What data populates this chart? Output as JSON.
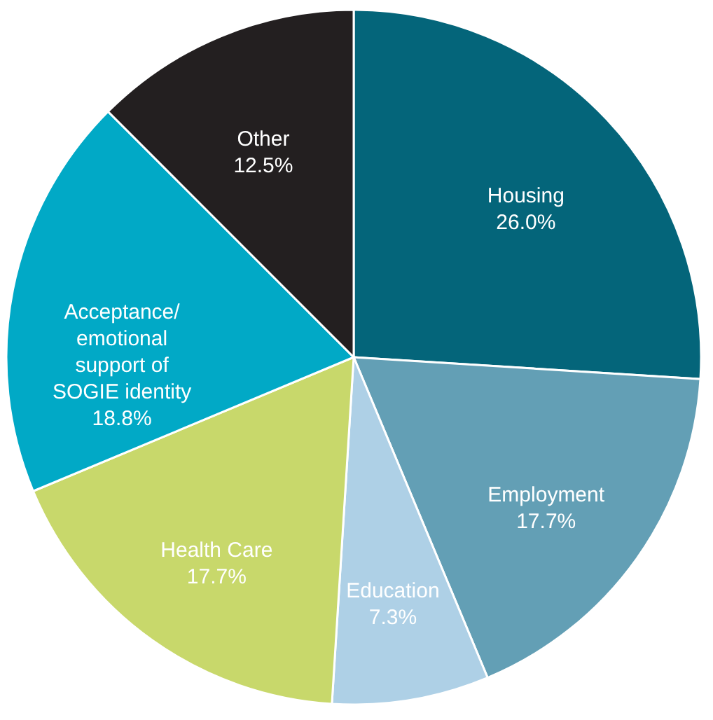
{
  "chart_data": {
    "type": "pie",
    "categories": [
      "Housing",
      "Employment",
      "Education",
      "Health Care",
      "Acceptance/ emotional support of SOGIE identity",
      "Other"
    ],
    "values": [
      26.0,
      17.7,
      7.3,
      17.7,
      18.8,
      12.5
    ],
    "value_labels": [
      "26.0%",
      "17.7%",
      "7.3%",
      "17.7%",
      "18.8%",
      "12.5%"
    ],
    "colors": [
      "#04657a",
      "#639fb5",
      "#aed0e6",
      "#c8d86b",
      "#01a9c6",
      "#231f20"
    ]
  }
}
